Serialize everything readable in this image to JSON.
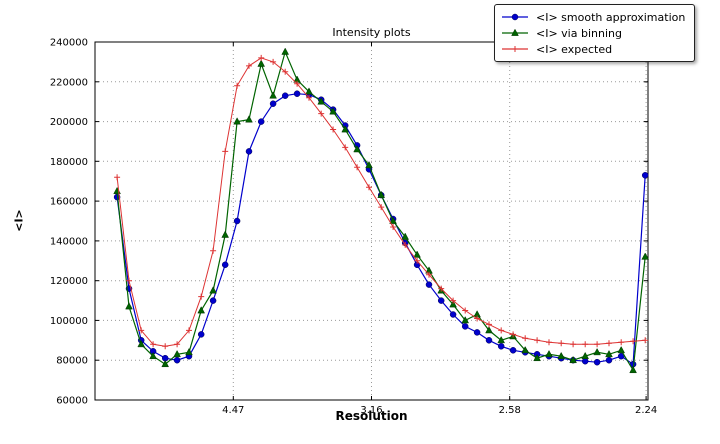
{
  "chart_data": {
    "type": "line",
    "title": "Intensity plots",
    "xlabel": "Resolution",
    "ylabel": "<I>",
    "grid": true,
    "legend_position": "upper right, outside plot top",
    "xlim": [
      0,
      0.2
    ],
    "ylim": [
      60000,
      240000
    ],
    "x_axis_note": "x axis linear in 1/d^2; tick labels show resolution d in Angstrom",
    "x_ticks": [
      {
        "pos": 0.05,
        "label": "4.47"
      },
      {
        "pos": 0.1,
        "label": "3.16"
      },
      {
        "pos": 0.15,
        "label": "2.58"
      },
      {
        "pos": 0.1993,
        "label": "2.24"
      }
    ],
    "y_ticks": [
      {
        "pos": 60000,
        "label": "60000"
      },
      {
        "pos": 80000,
        "label": "80000"
      },
      {
        "pos": 100000,
        "label": "100000"
      },
      {
        "pos": 120000,
        "label": "120000"
      },
      {
        "pos": 140000,
        "label": "140000"
      },
      {
        "pos": 160000,
        "label": "160000"
      },
      {
        "pos": 180000,
        "label": "180000"
      },
      {
        "pos": 200000,
        "label": "200000"
      },
      {
        "pos": 220000,
        "label": "220000"
      },
      {
        "pos": 240000,
        "label": "240000"
      }
    ],
    "x": [
      0.008,
      0.0123,
      0.0167,
      0.021,
      0.0254,
      0.0297,
      0.034,
      0.0384,
      0.0427,
      0.0471,
      0.0514,
      0.0557,
      0.0601,
      0.0644,
      0.0688,
      0.0731,
      0.0774,
      0.0818,
      0.0861,
      0.0905,
      0.0948,
      0.0991,
      0.1035,
      0.1078,
      0.1122,
      0.1165,
      0.1208,
      0.1252,
      0.1295,
      0.1339,
      0.1382,
      0.1425,
      0.1469,
      0.1512,
      0.1556,
      0.1599,
      0.1642,
      0.1686,
      0.1729,
      0.1773,
      0.1816,
      0.1859,
      0.1903,
      0.1946,
      0.199
    ],
    "series": [
      {
        "name": "<I> smooth approximation",
        "color": "#0000cc",
        "marker": "circle",
        "values": [
          162000,
          116000,
          90000,
          84500,
          81000,
          80000,
          82000,
          93000,
          110000,
          128000,
          150000,
          185000,
          200000,
          209000,
          213000,
          214000,
          213500,
          211000,
          206000,
          198000,
          188000,
          176000,
          163000,
          151000,
          139000,
          128000,
          118000,
          110000,
          103000,
          97000,
          94000,
          90000,
          87000,
          85000,
          84000,
          83000,
          82000,
          81000,
          80000,
          79500,
          79000,
          80000,
          82000,
          78000,
          173000
        ]
      },
      {
        "name": "<I> via binning",
        "color": "#006400",
        "marker": "triangle",
        "values": [
          165000,
          107000,
          88000,
          82000,
          78000,
          83000,
          84000,
          105000,
          115000,
          143000,
          200000,
          201000,
          229000,
          213000,
          235000,
          221000,
          215000,
          210000,
          205000,
          196000,
          186000,
          178000,
          163000,
          150000,
          142000,
          133000,
          125000,
          115000,
          108000,
          100000,
          103000,
          95000,
          90000,
          92000,
          85000,
          81000,
          83000,
          82000,
          80000,
          82000,
          84000,
          83000,
          85000,
          75000,
          132000
        ]
      },
      {
        "name": "<I> expected",
        "color": "#dd3333",
        "marker": "plus",
        "values": [
          172000,
          120000,
          95000,
          88000,
          87000,
          88000,
          95000,
          112000,
          135000,
          185000,
          218000,
          228000,
          232000,
          230000,
          225000,
          219000,
          212000,
          204000,
          196000,
          187000,
          177000,
          167000,
          157000,
          147000,
          138000,
          130000,
          123000,
          116000,
          110000,
          105000,
          101000,
          98000,
          95000,
          93000,
          91000,
          90000,
          89000,
          88500,
          88000,
          88000,
          88000,
          88500,
          89000,
          89500,
          90000
        ]
      }
    ]
  }
}
